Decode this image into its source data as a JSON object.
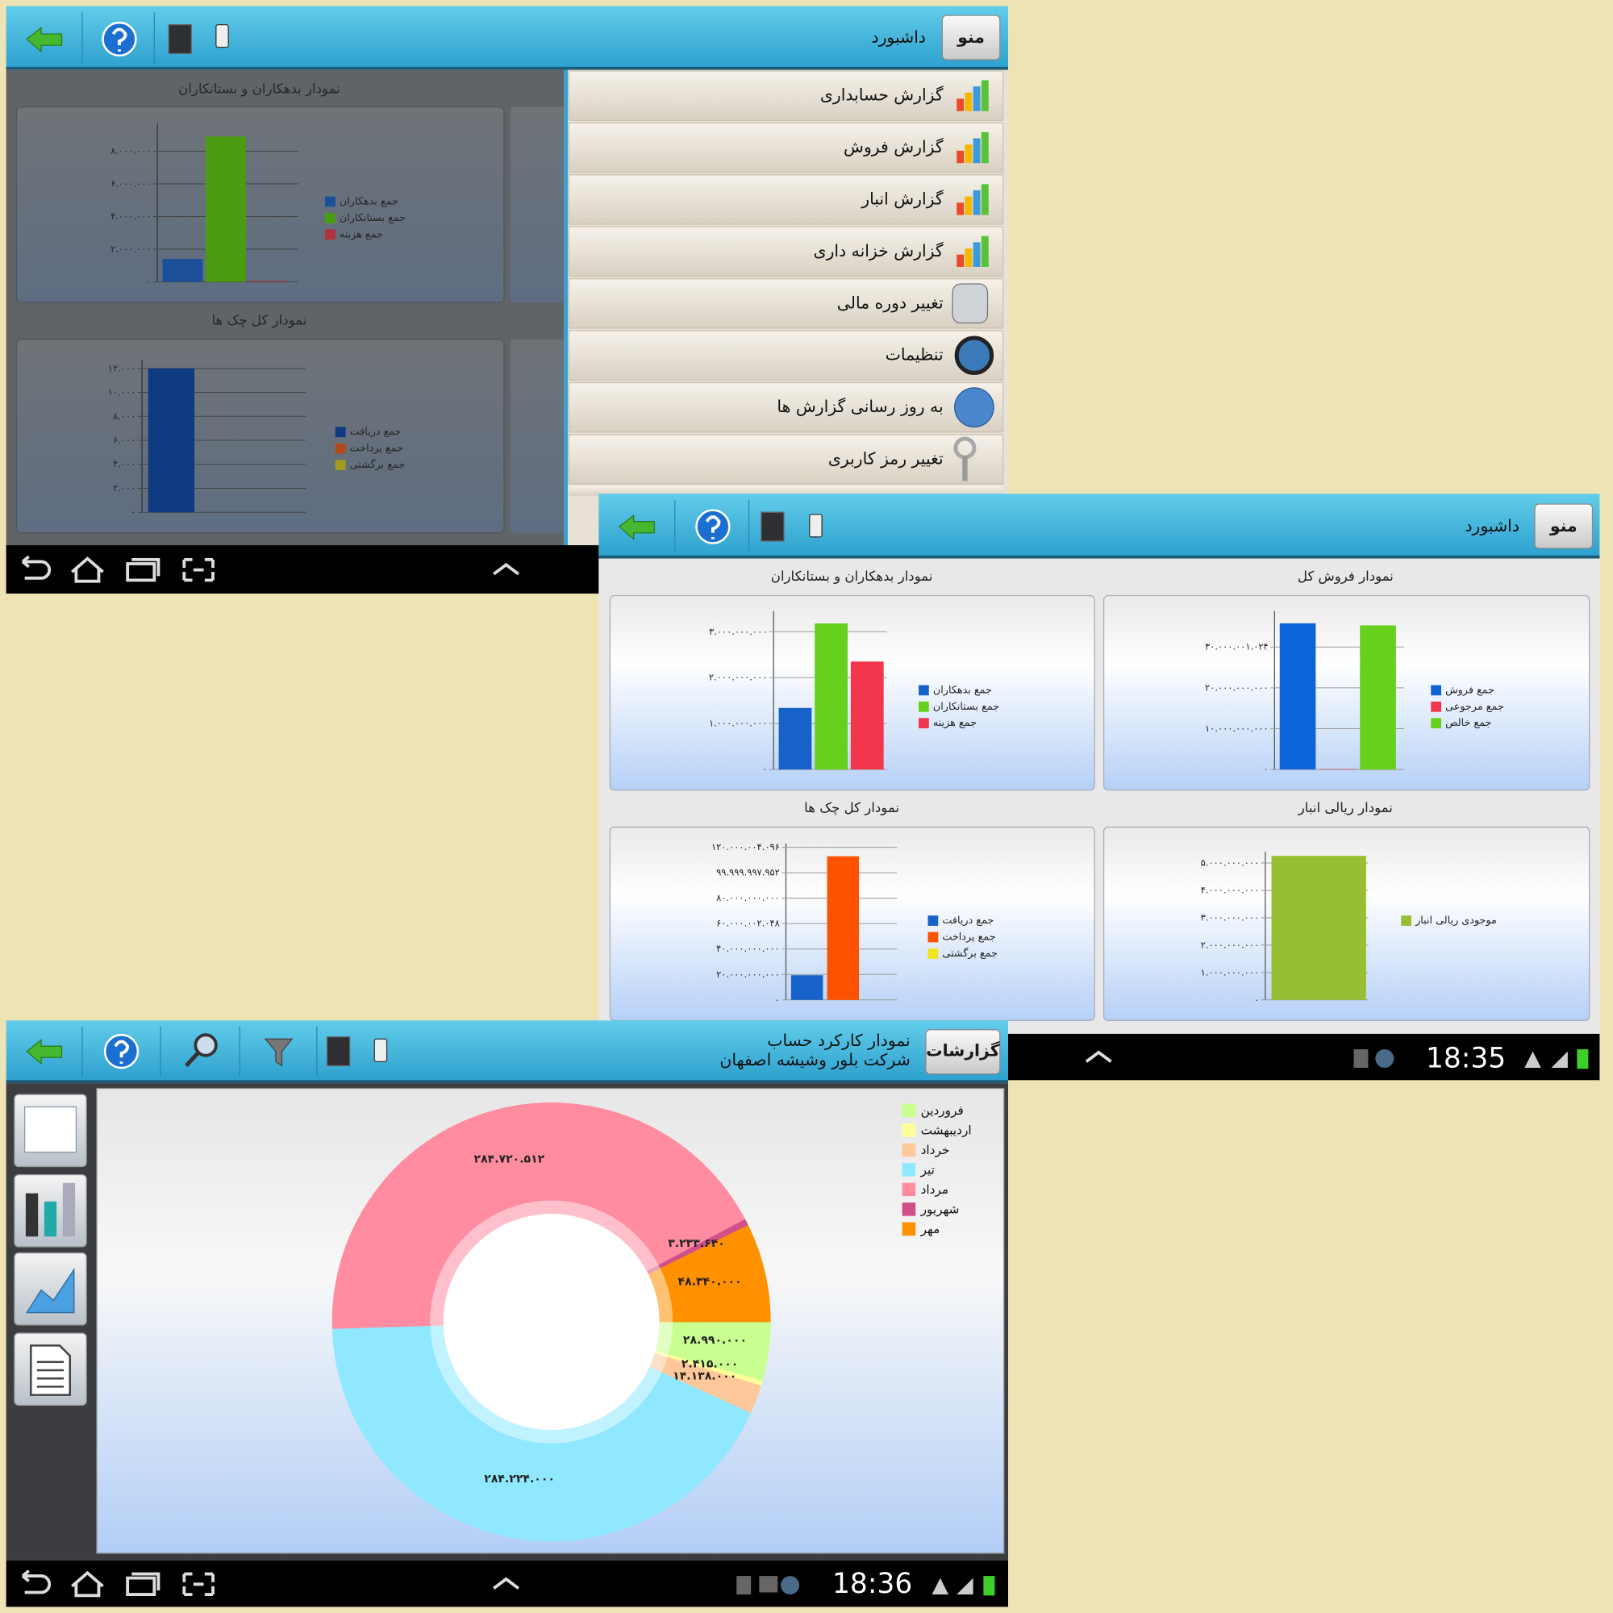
{
  "screens": [
    {
      "header": {
        "menu_button": "منو",
        "title": "داشبورد"
      },
      "menu": [
        "گزارش حسابداری",
        "گزارش فروش",
        "گزارش انبار",
        "گزارش خزانه داری",
        "تغییر دوره مالی",
        "تنظیمات",
        "به روز رسانی گزارش ها",
        "تغییر رمز کاربری"
      ],
      "charts": [
        {
          "type": "bar",
          "title": "نمودار بدهکاران و بستانکاران",
          "ylim": [
            0,
            9700000
          ],
          "yticks": [
            {
              "value": 0,
              "label": "۰"
            },
            {
              "value": 2000000,
              "label": "۲.۰۰۰.۰۰۰"
            },
            {
              "value": 4000000,
              "label": "۴.۰۰۰.۰۰۰"
            },
            {
              "value": 6000000,
              "label": "۶.۰۰۰.۰۰۰"
            },
            {
              "value": 8000000,
              "label": "۸.۰۰۰.۰۰۰"
            }
          ],
          "series": [
            {
              "name": "جمع بدهکاران",
              "color": "#1b4f98",
              "values": [
                1400000
              ]
            },
            {
              "name": "جمع بستانکاران",
              "color": "#4c9c12",
              "values": [
                8900000
              ]
            },
            {
              "name": "جمع هزینه",
              "color": "#b0323f",
              "values": [
                50000
              ]
            }
          ]
        },
        {
          "type": "bar",
          "title": "نمودار کل چک ها",
          "ylim": [
            0,
            12700
          ],
          "yticks": [
            {
              "value": 0,
              "label": "۰"
            },
            {
              "value": 2000,
              "label": "۲.۰۰۰"
            },
            {
              "value": 4000,
              "label": "۴.۰۰۰"
            },
            {
              "value": 6000,
              "label": "۶.۰۰۰"
            },
            {
              "value": 8000,
              "label": "۸.۰۰۰"
            },
            {
              "value": 10000,
              "label": "۱۰.۰۰۰"
            },
            {
              "value": 12000,
              "label": "۱۲.۰۰۰"
            }
          ],
          "series": [
            {
              "name": "جمع دریافت",
              "color": "#0d3a80",
              "values": [
                12000
              ]
            },
            {
              "name": "جمع پرداخت",
              "color": "#b34a1a",
              "values": [
                0
              ]
            },
            {
              "name": "جمع برگشتی",
              "color": "#a39a1e",
              "values": [
                0
              ]
            }
          ]
        }
      ]
    },
    {
      "header": {
        "menu_button": "منو",
        "title": "داشبورد"
      },
      "charts": [
        {
          "type": "bar",
          "title": "نمودار بدهکاران و بستانکاران",
          "ylim": [
            0,
            3450000000
          ],
          "yticks": [
            {
              "value": 0,
              "label": "۰"
            },
            {
              "value": 1000000000,
              "label": "۱.۰۰۰.۰۰۰.۰۰۰"
            },
            {
              "value": 2000000000,
              "label": "۲.۰۰۰.۰۰۰.۰۰۰"
            },
            {
              "value": 3000000000,
              "label": "۳.۰۰۰.۰۰۰.۰۰۰"
            }
          ],
          "series": [
            {
              "name": "جمع بدهکاران",
              "color": "#1762c8",
              "values": [
                1340000000
              ]
            },
            {
              "name": "جمع بستانکاران",
              "color": "#66d11c",
              "values": [
                3180000000
              ]
            },
            {
              "name": "جمع هزینه",
              "color": "#f2364c",
              "values": [
                2350000000
              ]
            }
          ]
        },
        {
          "type": "bar",
          "title": "نمودار فروش کل",
          "ylim": [
            0,
            38800000000
          ],
          "yticks": [
            {
              "value": 0,
              "label": "۰"
            },
            {
              "value": 10000000000,
              "label": "۱۰.۰۰۰.۰۰۰.۰۰۰"
            },
            {
              "value": 20000000000,
              "label": "۲۰.۰۰۰.۰۰۰.۰۰۰"
            },
            {
              "value": 30000001024,
              "label": "۳۰.۰۰۰.۰۰۱.۰۲۴"
            }
          ],
          "series": [
            {
              "name": "جمع فروش",
              "color": "#0d64d8",
              "values": [
                35800000000
              ]
            },
            {
              "name": "جمع مرجوعی",
              "color": "#f2364c",
              "values": [
                100000000
              ]
            },
            {
              "name": "جمع خالص",
              "color": "#66d11c",
              "values": [
                35300000000
              ]
            }
          ]
        },
        {
          "type": "bar",
          "title": "نمودار کل چک ها",
          "ylim": [
            0,
            123000000000
          ],
          "yticks": [
            {
              "value": 0,
              "label": "۰"
            },
            {
              "value": 20000000000,
              "label": "۲۰.۰۰۰.۰۰۰.۰۰۰"
            },
            {
              "value": 40000000000,
              "label": "۴۰.۰۰۰.۰۰۰.۰۰۰"
            },
            {
              "value": 60000002048,
              "label": "۶۰.۰۰۰.۰۰۲.۰۴۸"
            },
            {
              "value": 80000000000,
              "label": "۸۰.۰۰۰.۰۰۰.۰۰۰"
            },
            {
              "value": 99999997952,
              "label": "۹۹.۹۹۹.۹۹۷.۹۵۲"
            },
            {
              "value": 120000004096,
              "label": "۱۲۰.۰۰۰.۰۰۴.۰۹۶"
            }
          ],
          "series": [
            {
              "name": "جمع دریافت",
              "color": "#1762c8",
              "values": [
                19400000000
              ]
            },
            {
              "name": "جمع پرداخت",
              "color": "#ff5200",
              "values": [
                113000000000
              ]
            },
            {
              "name": "جمع برگشتی",
              "color": "#f0e41e",
              "values": [
                0
              ]
            }
          ]
        },
        {
          "type": "bar",
          "title": "نمودار ریالی انبار",
          "ylim": [
            0,
            5410000000
          ],
          "yticks": [
            {
              "value": 0,
              "label": "۰"
            },
            {
              "value": 1000000000,
              "label": "۱.۰۰۰.۰۰۰.۰۰۰"
            },
            {
              "value": 2000000000,
              "label": "۲.۰۰۰.۰۰۰.۰۰۰"
            },
            {
              "value": 3000000000,
              "label": "۳.۰۰۰.۰۰۰.۰۰۰"
            },
            {
              "value": 4000000000,
              "label": "۴.۰۰۰.۰۰۰.۰۰۰"
            },
            {
              "value": 5000000000,
              "label": "۵.۰۰۰.۰۰۰.۰۰۰"
            }
          ],
          "series": [
            {
              "name": "موجودی ریالی انبار",
              "color": "#98bf34",
              "values": [
                5260000000
              ]
            }
          ]
        }
      ],
      "status": {
        "time": "18:35"
      }
    },
    {
      "header": {
        "menu_button": "گزارشات",
        "title": "نمودار کارکرد حساب",
        "subtitle": "شرکت بلور وشیشه اصفهان"
      },
      "chart": {
        "type": "pie",
        "categories": [
          "فروردین",
          "اردیبهشت",
          "خرداد",
          "تیر",
          "مرداد",
          "شهریور",
          "مهر"
        ],
        "values": [
          28990000,
          2415000,
          14138000,
          284224000,
          284720512,
          3233640,
          48340000
        ],
        "value_labels": [
          "۲۸.۹۹۰.۰۰۰",
          "۲.۴۱۵.۰۰۰",
          "۱۴.۱۳۸.۰۰۰",
          "۲۸۴.۲۲۴.۰۰۰",
          "۲۸۴.۷۲۰.۵۱۲",
          "۳.۲۳۳.۶۴۰",
          "۴۸.۳۴۰.۰۰۰"
        ],
        "colors": [
          "#c8ff90",
          "#ffff99",
          "#ffc89a",
          "#8fe8ff",
          "#ff8ca0",
          "#d0508a",
          "#ff9000"
        ]
      },
      "status": {
        "time": "18:36"
      }
    }
  ]
}
